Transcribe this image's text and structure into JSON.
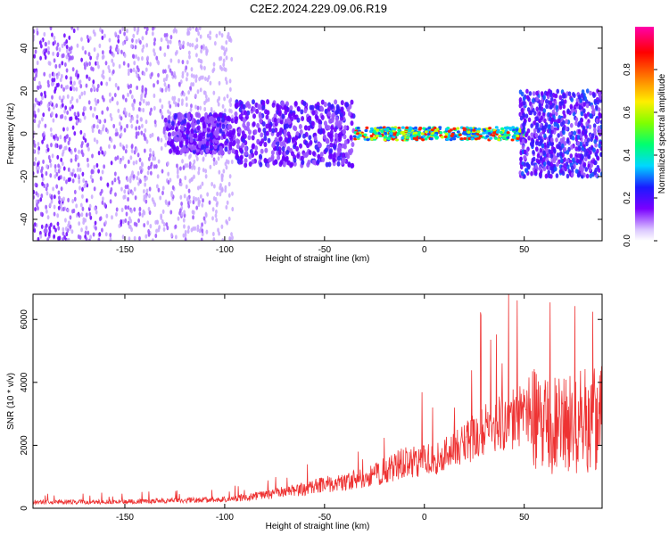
{
  "title": "C2E2.2024.229.09.06.R19",
  "colors": {
    "snr_line": "#ee3333",
    "spectro_base": "#5a00e8",
    "axes": "#000000"
  },
  "chart_data": [
    {
      "type": "heatmap",
      "name": "spectrogram",
      "xlabel": "Height of straight line (km)",
      "ylabel": "Frequency (Hz)",
      "xlim": [
        -196,
        89
      ],
      "ylim": [
        -50,
        50
      ],
      "xticks": [
        -150,
        -100,
        -50,
        0,
        50
      ],
      "yticks": [
        -40,
        -20,
        0,
        20,
        40
      ],
      "colorbar": {
        "label": "Normalized spectral amplitude",
        "range": [
          0,
          1
        ],
        "ticks": [
          "0.0",
          "0.2",
          "0.4",
          "0.6",
          "0.8"
        ],
        "colormap": "hsv-rainbow (violet → blue → cyan → green → yellow → red → magenta)"
      },
      "features": [
        {
          "x_range": [
            -196,
            -100
          ],
          "freq_band": [
            -50,
            50
          ],
          "amplitude": 0.05,
          "description": "scattered low amplitude noise"
        },
        {
          "x_range": [
            -130,
            -40
          ],
          "freq_band": [
            -15,
            15
          ],
          "amplitude": 0.15
        },
        {
          "x_range": [
            -35,
            45
          ],
          "freq_band": [
            -3,
            3
          ],
          "amplitude": 0.9
        },
        {
          "x_range": [
            50,
            89
          ],
          "freq_band": [
            -20,
            20
          ],
          "amplitude": 0.35
        }
      ]
    },
    {
      "type": "line",
      "name": "snr",
      "xlabel": "Height of straight line (km)",
      "ylabel": "SNR (10 * v/v)",
      "xlim": [
        -196,
        89
      ],
      "ylim": [
        0,
        6800
      ],
      "xticks": [
        -150,
        -100,
        -50,
        0,
        50
      ],
      "yticks": [
        0,
        2000,
        4000,
        6000
      ],
      "series": [
        {
          "x": [
            -196,
            -180,
            -160,
            -140,
            -120,
            -100,
            -90,
            -80,
            -70,
            -60,
            -50,
            -40,
            -30,
            -20,
            -10,
            0,
            10,
            20,
            30,
            40,
            50,
            55,
            60,
            65,
            70,
            75,
            80,
            85,
            89
          ],
          "values": [
            200,
            200,
            200,
            220,
            250,
            280,
            350,
            420,
            520,
            620,
            760,
            850,
            950,
            1200,
            1450,
            1500,
            1700,
            2100,
            2500,
            2800,
            2900,
            2800,
            2700,
            2600,
            2700,
            2750,
            2800,
            2850,
            3200
          ]
        }
      ]
    }
  ]
}
